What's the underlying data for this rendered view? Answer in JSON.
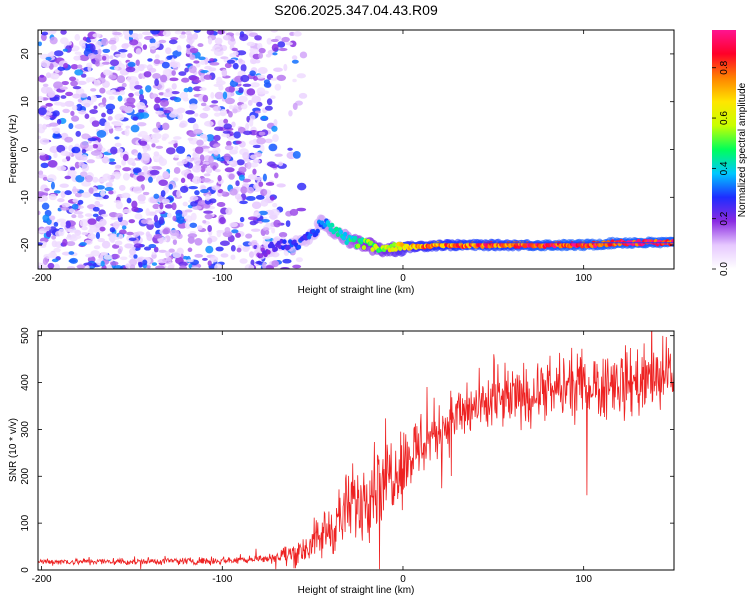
{
  "title": "S206.2025.347.04.43.R09",
  "chart_data": [
    {
      "type": "heatmap",
      "xlabel": "Height of straight line (km)",
      "ylabel": "Frequency (Hz)",
      "xlim": [
        -202,
        150
      ],
      "ylim": [
        -25,
        25
      ],
      "xticks": [
        -200,
        -100,
        0,
        100
      ],
      "yticks": [
        20,
        10,
        0,
        -10,
        -20
      ],
      "grid": false,
      "colorbar": {
        "label": "Normalized spectral amplitude",
        "range": [
          0.0,
          0.95
        ],
        "ticks": [
          "0.0",
          "0.2",
          "0.4",
          "0.6",
          "0.8"
        ],
        "colors": [
          "#ffffff",
          "#e6c8ff",
          "#8a2be2",
          "#1e2dff",
          "#00c8ff",
          "#00ff5a",
          "#c8ff00",
          "#ffe600",
          "#ff8200",
          "#ff0028",
          "#ff1490"
        ]
      },
      "noise_region": {
        "x_from": -202,
        "x_to": -70,
        "amplitude": [
          0.05,
          0.35
        ]
      },
      "ridge": [
        {
          "x": -80,
          "y": -22,
          "v": 0.2
        },
        {
          "x": -70,
          "y": -20,
          "v": 0.25
        },
        {
          "x": -60,
          "y": -20,
          "v": 0.3
        },
        {
          "x": -50,
          "y": -18,
          "v": 0.3
        },
        {
          "x": -45,
          "y": -15,
          "v": 0.35
        },
        {
          "x": -38,
          "y": -17,
          "v": 0.4
        },
        {
          "x": -30,
          "y": -19,
          "v": 0.45
        },
        {
          "x": -20,
          "y": -20,
          "v": 0.55
        },
        {
          "x": -10,
          "y": -21,
          "v": 0.6
        },
        {
          "x": 0,
          "y": -20.5,
          "v": 0.7
        },
        {
          "x": 20,
          "y": -20,
          "v": 0.8
        },
        {
          "x": 40,
          "y": -20,
          "v": 0.85
        },
        {
          "x": 60,
          "y": -20,
          "v": 0.85
        },
        {
          "x": 80,
          "y": -20,
          "v": 0.9
        },
        {
          "x": 100,
          "y": -20,
          "v": 0.9
        },
        {
          "x": 120,
          "y": -19.5,
          "v": 0.9
        },
        {
          "x": 150,
          "y": -19.5,
          "v": 0.9
        }
      ],
      "fit_line": {
        "x_from": 0,
        "x_to": 150,
        "y": -19.5
      }
    },
    {
      "type": "line",
      "xlabel": "Height of straight line (km)",
      "ylabel": "SNR (10 * v/v)",
      "xlim": [
        -202,
        150
      ],
      "ylim": [
        0,
        510
      ],
      "xticks": [
        -200,
        -100,
        0,
        100
      ],
      "yticks": [
        0,
        100,
        200,
        300,
        400,
        500
      ],
      "grid": false,
      "series": [
        {
          "color": "#ee2222",
          "trend": {
            "x": [
              -202,
              -150,
              -100,
              -75,
              -60,
              -50,
              -40,
              -30,
              -20,
              -10,
              0,
              10,
              20,
              30,
              40,
              60,
              80,
              100,
              120,
              150
            ],
            "y": [
              18,
              18,
              20,
              25,
              35,
              55,
              90,
              130,
              170,
              200,
              230,
              270,
              300,
              330,
              345,
              365,
              380,
              395,
              400,
              410
            ]
          },
          "spread": {
            "x": [
              -202,
              -75,
              -50,
              -20,
              0,
              20,
              60,
              100,
              150
            ],
            "y": [
              5,
              6,
              30,
              70,
              60,
              45,
              45,
              50,
              55
            ]
          }
        }
      ]
    }
  ]
}
